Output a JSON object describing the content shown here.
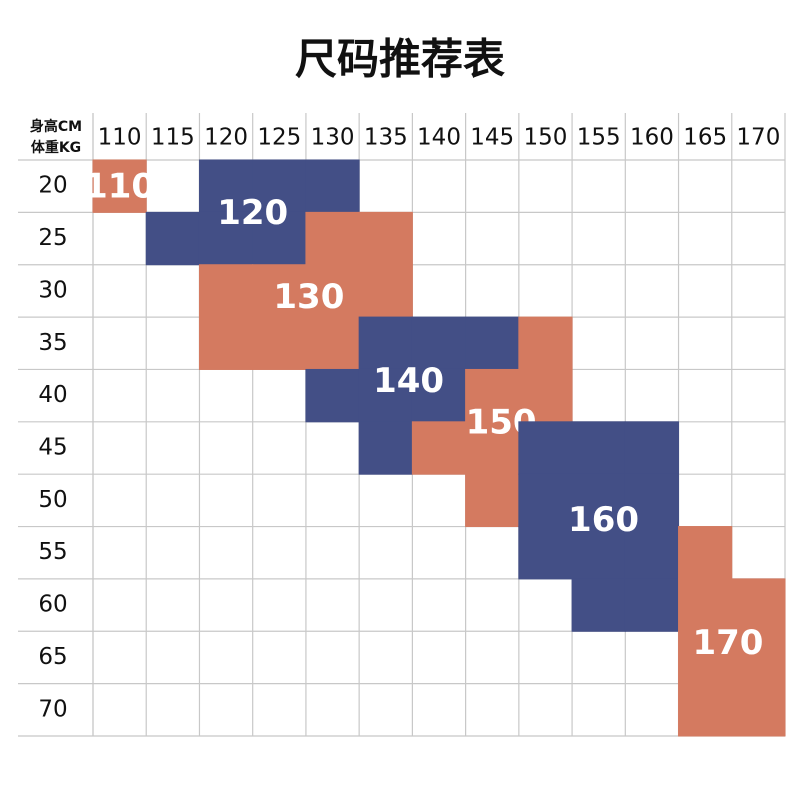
{
  "title": "尺码推荐表",
  "table": {
    "corner": [
      "身高CM",
      "体重KG"
    ],
    "heights": [
      "110",
      "115",
      "120",
      "125",
      "130",
      "135",
      "140",
      "145",
      "150",
      "155",
      "160",
      "165",
      "170"
    ],
    "weights": [
      "20",
      "25",
      "30",
      "35",
      "40",
      "45",
      "50",
      "55",
      "60",
      "65",
      "70"
    ],
    "regions": [
      {
        "label": "110",
        "color": "#d47a60",
        "cells": [
          [
            0,
            0
          ]
        ]
      },
      {
        "label": "120",
        "color": "#434f86",
        "cells": [
          [
            0,
            2
          ],
          [
            0,
            3
          ],
          [
            0,
            4
          ],
          [
            1,
            1
          ],
          [
            1,
            2
          ],
          [
            1,
            3
          ]
        ]
      },
      {
        "label": "130",
        "color": "#d47a60",
        "cells": [
          [
            1,
            4
          ],
          [
            1,
            5
          ],
          [
            2,
            2
          ],
          [
            2,
            3
          ],
          [
            2,
            4
          ],
          [
            2,
            5
          ],
          [
            3,
            2
          ],
          [
            3,
            3
          ],
          [
            3,
            4
          ]
        ]
      },
      {
        "label": "140",
        "color": "#434f86",
        "cells": [
          [
            3,
            5
          ],
          [
            3,
            6
          ],
          [
            3,
            7
          ],
          [
            4,
            4
          ],
          [
            4,
            5
          ],
          [
            4,
            6
          ],
          [
            5,
            5
          ]
        ]
      },
      {
        "label": "150",
        "color": "#d47a60",
        "cells": [
          [
            3,
            8
          ],
          [
            4,
            7
          ],
          [
            4,
            8
          ],
          [
            5,
            6
          ],
          [
            5,
            7
          ],
          [
            6,
            7
          ]
        ]
      },
      {
        "label": "160",
        "color": "#434f86",
        "cells": [
          [
            5,
            8
          ],
          [
            5,
            9
          ],
          [
            5,
            10
          ],
          [
            6,
            8
          ],
          [
            6,
            9
          ],
          [
            6,
            10
          ],
          [
            7,
            8
          ],
          [
            7,
            9
          ],
          [
            7,
            10
          ],
          [
            8,
            9
          ],
          [
            8,
            10
          ]
        ]
      },
      {
        "label": "170",
        "color": "#d47a60",
        "cells": [
          [
            7,
            11
          ],
          [
            8,
            11
          ],
          [
            8,
            12
          ],
          [
            9,
            11
          ],
          [
            9,
            12
          ],
          [
            10,
            11
          ],
          [
            10,
            12
          ]
        ]
      }
    ]
  }
}
